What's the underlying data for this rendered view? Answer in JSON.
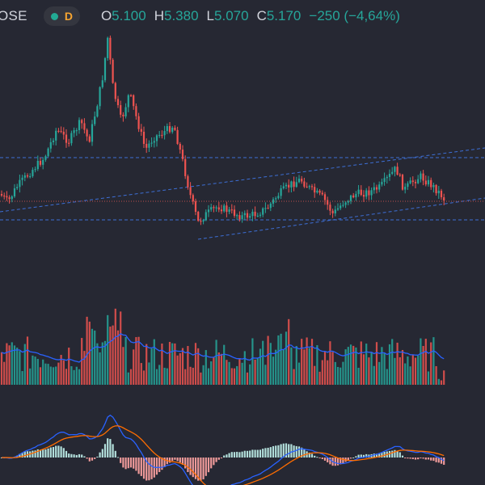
{
  "header": {
    "symbol": "OSE",
    "interval": "D",
    "ohlc": [
      {
        "key": "O",
        "value": "5.100"
      },
      {
        "key": "H",
        "value": "5.380"
      },
      {
        "key": "L",
        "value": "5.070"
      },
      {
        "key": "C",
        "value": "5.170"
      }
    ],
    "change": "−250 (−4,64%)"
  },
  "colors": {
    "background": "#262833",
    "up": "#26a69a",
    "down": "#ef5350",
    "trendline": "#3d6fd6",
    "volume_ma": "#2962ff",
    "macd_line": "#2962ff",
    "signal_line": "#ff6d00"
  },
  "chart_data": {
    "type": "candlestick",
    "panes": [
      "price",
      "volume",
      "macd"
    ],
    "price_range": [
      3.6,
      6.6
    ],
    "candles": [],
    "note": ""
  }
}
